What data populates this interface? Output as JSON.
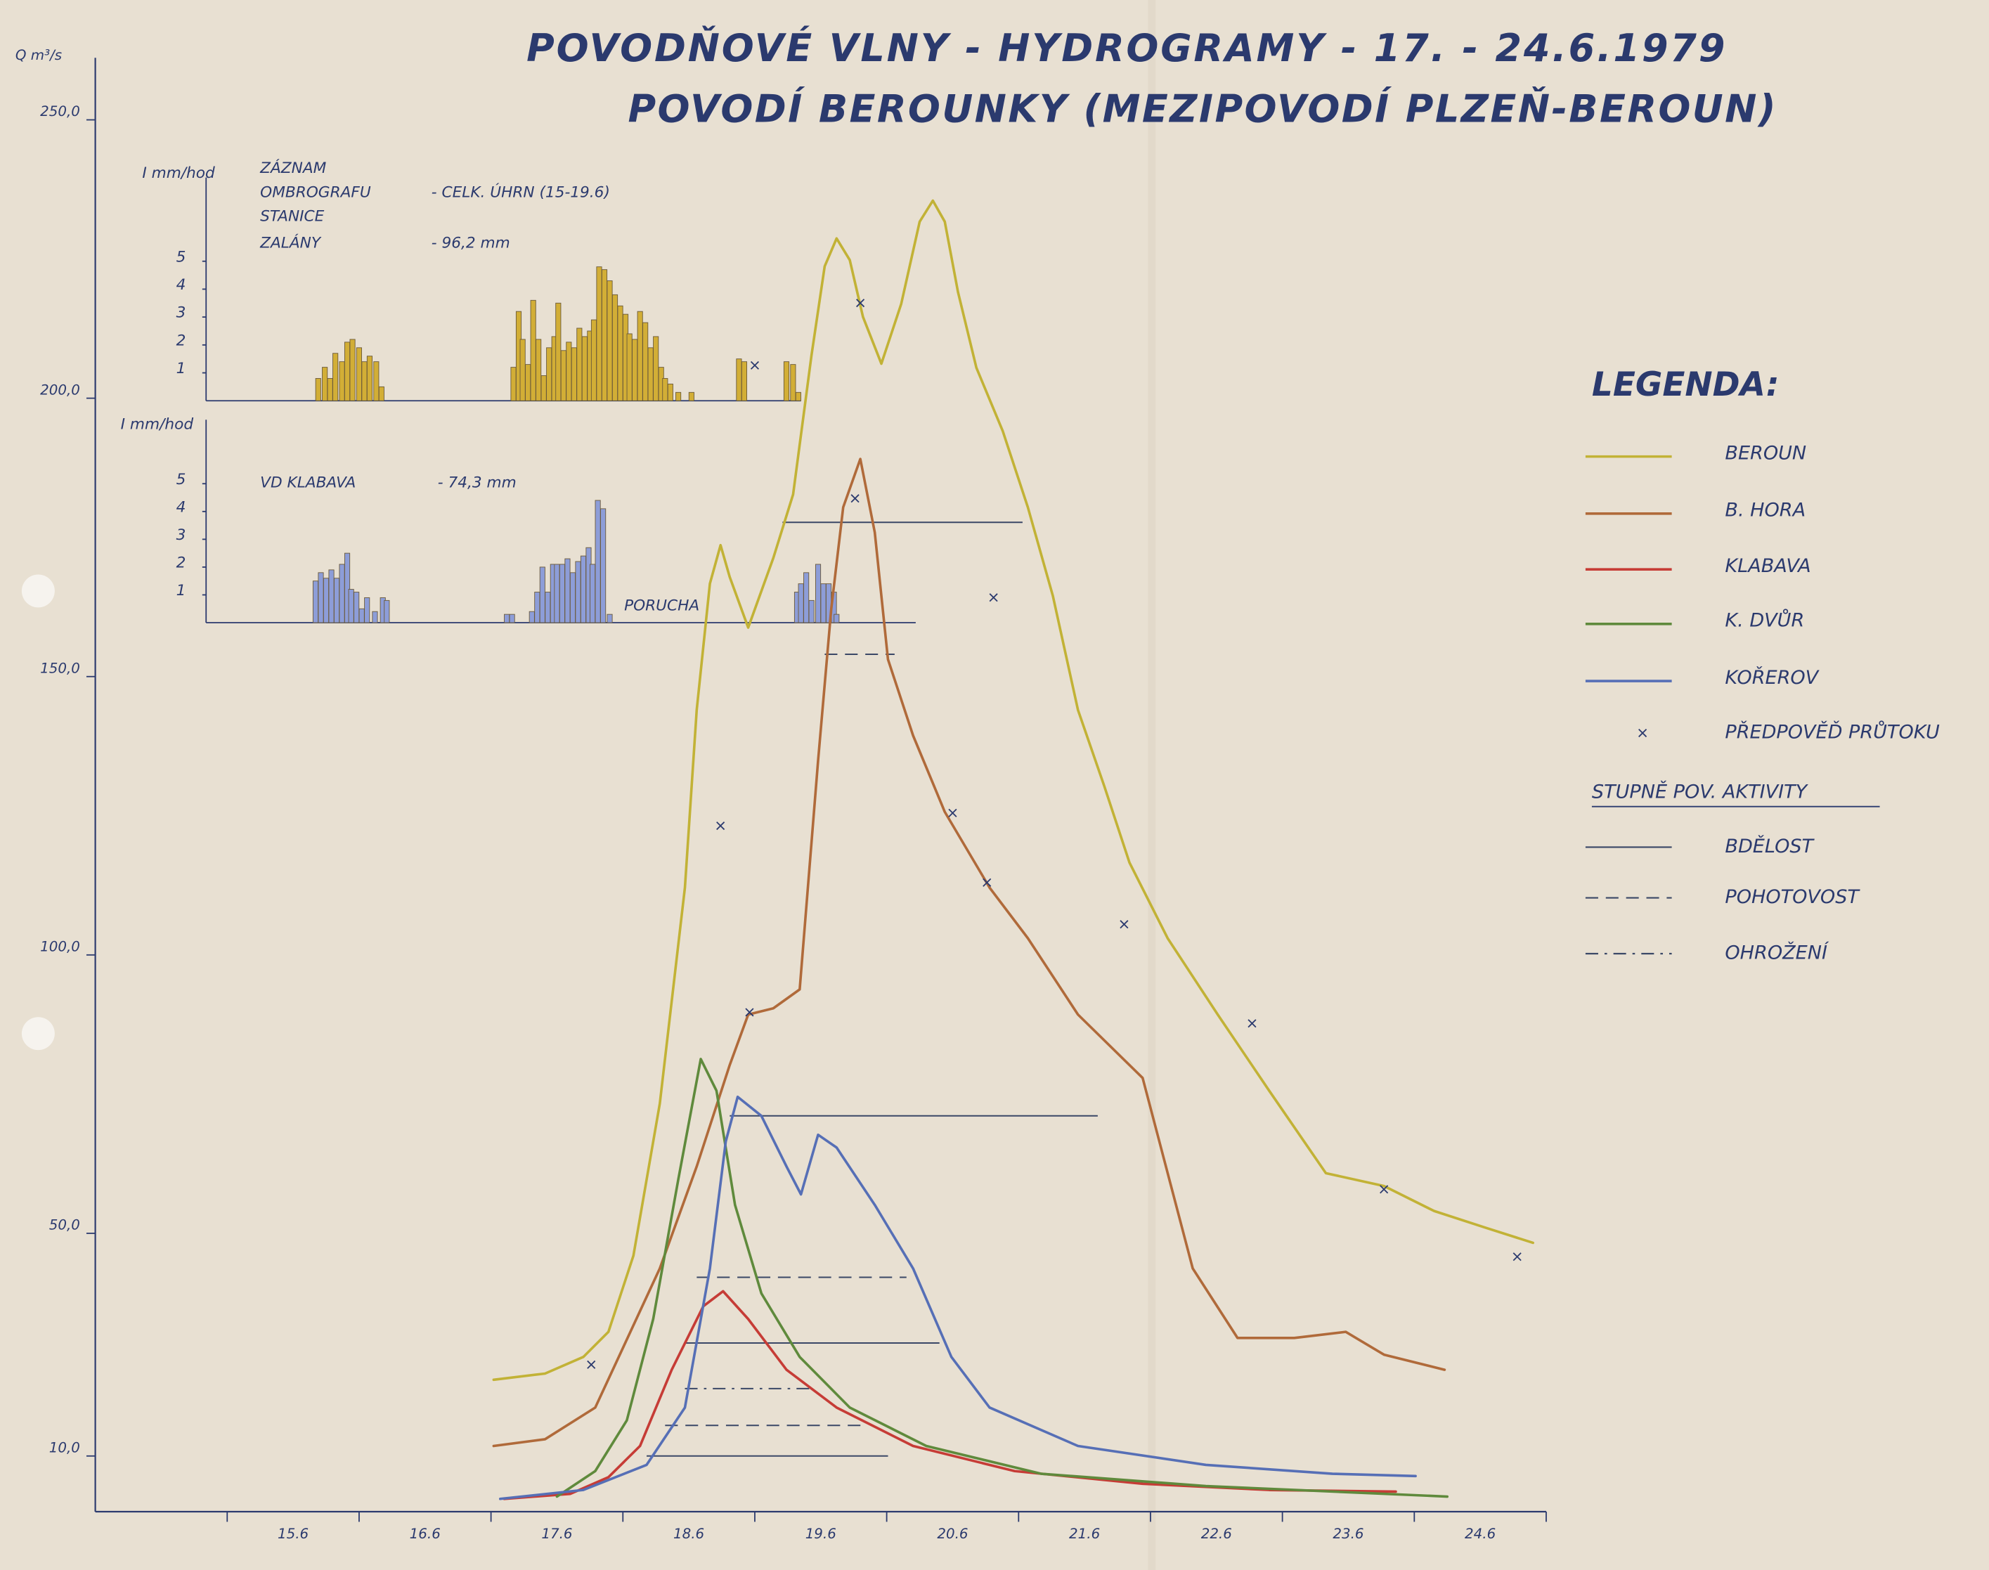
{
  "chart_data": {
    "type": "line",
    "title": "POVODŇOVÉ VLNY - HYDROGRAMY - 17. - 24.6.1979",
    "subtitle": "POVODÍ BEROUNKY (MEZIPOVODÍ PLZEŇ-BEROUN)",
    "y_label": "Q m³/s",
    "xlim": [
      14,
      25
    ],
    "ylim": [
      0,
      260
    ],
    "xticks": [
      {
        "value": 15.5,
        "label": "15.6"
      },
      {
        "value": 16.5,
        "label": "16.6"
      },
      {
        "value": 17.5,
        "label": "17.6"
      },
      {
        "value": 18.5,
        "label": "18.6"
      },
      {
        "value": 19.5,
        "label": "19.6"
      },
      {
        "value": 20.5,
        "label": "20.6"
      },
      {
        "value": 21.5,
        "label": "21.6"
      },
      {
        "value": 22.5,
        "label": "22.6"
      },
      {
        "value": 23.5,
        "label": "23.6"
      },
      {
        "value": 24.5,
        "label": "24.6"
      }
    ],
    "yticks": [
      {
        "value": 10,
        "label": "10,0"
      },
      {
        "value": 50,
        "label": "50,0"
      },
      {
        "value": 100,
        "label": "100,0"
      },
      {
        "value": 150,
        "label": "150,0"
      },
      {
        "value": 200,
        "label": "200,0"
      },
      {
        "value": 250,
        "label": "250,0"
      }
    ],
    "legend": {
      "title": "LEGENDA:"
    },
    "series": [
      {
        "name": "BEROUN",
        "color": "#c2b236",
        "x": [
          17.02,
          17.41,
          17.7,
          17.89,
          18.08,
          18.28,
          18.47,
          18.56,
          18.66,
          18.74,
          18.81,
          18.95,
          19.14,
          19.29,
          19.43,
          19.53,
          19.62,
          19.72,
          19.82,
          19.96,
          20.11,
          20.25,
          20.35,
          20.44,
          20.54,
          20.68,
          20.88,
          21.07,
          21.26,
          21.45,
          21.65,
          21.84,
          22.13,
          22.51,
          22.9,
          23.33,
          23.77,
          24.15,
          24.54,
          24.9
        ],
        "values": [
          23.7,
          24.8,
          27.8,
          32.3,
          46.0,
          73.3,
          112.1,
          144.0,
          166.7,
          173.6,
          167.9,
          158.8,
          171.3,
          182.7,
          207.7,
          223.7,
          228.7,
          224.8,
          214.6,
          206.2,
          216.9,
          231.7,
          235.5,
          231.7,
          219.1,
          205.5,
          194.1,
          180.4,
          164.5,
          144.0,
          130.3,
          116.6,
          103.0,
          89.3,
          75.6,
          60.8,
          58.5,
          54.0,
          51.0,
          48.3
        ]
      },
      {
        "name": "B. HORA",
        "color": "#b06a3a",
        "x": [
          17.02,
          17.41,
          17.79,
          17.99,
          18.28,
          18.56,
          18.81,
          18.95,
          19.14,
          19.34,
          19.48,
          19.58,
          19.67,
          19.8,
          19.91,
          20.01,
          20.2,
          20.44,
          20.78,
          21.07,
          21.45,
          21.94,
          22.32,
          22.66,
          23.09,
          23.48,
          23.77,
          24.23
        ],
        "values": [
          11.8,
          13.0,
          18.7,
          28.9,
          43.7,
          62.0,
          80.2,
          89.3,
          90.4,
          93.8,
          134.9,
          162.2,
          180.4,
          189.1,
          175.9,
          153.1,
          139.4,
          125.7,
          112.1,
          103.0,
          89.3,
          77.9,
          43.7,
          31.2,
          31.2,
          32.3,
          28.2,
          25.5
        ]
      },
      {
        "name": "KLABAVA",
        "color": "#c63c36",
        "x": [
          17.1,
          17.6,
          17.89,
          18.13,
          18.37,
          18.61,
          18.76,
          18.95,
          19.24,
          19.62,
          20.2,
          20.97,
          21.94,
          22.9,
          23.86
        ],
        "values": [
          2.3,
          3.2,
          6.2,
          11.8,
          25.5,
          36.9,
          39.6,
          34.6,
          25.5,
          18.7,
          11.8,
          7.3,
          5.0,
          3.9,
          3.6
        ]
      },
      {
        "name": "K. DVŮR",
        "color": "#5f8a3c",
        "x": [
          17.5,
          17.79,
          18.03,
          18.23,
          18.42,
          18.59,
          18.71,
          18.85,
          19.05,
          19.34,
          19.72,
          20.3,
          21.17,
          22.42,
          24.25
        ],
        "values": [
          2.7,
          7.3,
          16.4,
          34.6,
          59.7,
          81.3,
          75.6,
          55.1,
          39.2,
          27.8,
          18.7,
          11.8,
          6.8,
          4.6,
          2.7
        ]
      },
      {
        "name": "KOŘEROV",
        "color": "#566fb6",
        "x": [
          17.07,
          17.7,
          18.18,
          18.47,
          18.66,
          18.78,
          18.87,
          19.05,
          19.24,
          19.35,
          19.48,
          19.62,
          19.91,
          20.2,
          20.49,
          20.78,
          21.45,
          22.42,
          23.38,
          24.01
        ],
        "values": [
          2.3,
          3.9,
          8.4,
          18.7,
          43.7,
          66.5,
          74.5,
          71.1,
          62.0,
          57.0,
          67.7,
          65.4,
          55.1,
          43.7,
          27.8,
          18.7,
          11.8,
          8.4,
          6.8,
          6.4
        ]
      }
    ],
    "forecast": {
      "name": "PŘEDPOVĚĎ PRŮTOKU",
      "marker": "x",
      "x": [
        17.76,
        18.74,
        18.96,
        19.0,
        19.76,
        19.8,
        20.81,
        20.5,
        20.76,
        21.8,
        22.77,
        23.77,
        24.78
      ],
      "values": [
        26.4,
        123.2,
        89.7,
        205.9,
        182.0,
        217.1,
        164.2,
        125.5,
        113.0,
        105.5,
        87.7,
        57.9,
        45.8
      ]
    },
    "activity_levels": {
      "title": "STUPNĚ POV. AKTIVITY",
      "levels": [
        {
          "name": "BDĚLOST",
          "style": "solid"
        },
        {
          "name": "POHOTOVOST",
          "style": "dashed"
        },
        {
          "name": "OHROŽENÍ",
          "style": "dashdot"
        }
      ]
    },
    "thresholds": [
      {
        "level": 0,
        "value": 177.7,
        "x": [
          19.21,
          21.03
        ]
      },
      {
        "level": 0,
        "value": 71.1,
        "x": [
          18.81,
          21.6
        ]
      },
      {
        "level": 0,
        "value": 30.3,
        "x": [
          18.47,
          20.4
        ]
      },
      {
        "level": 0,
        "value": 10.0,
        "x": [
          18.18,
          20.01
        ]
      },
      {
        "level": 1,
        "value": 154.0,
        "x": [
          19.53,
          20.06
        ]
      },
      {
        "level": 1,
        "value": 42.1,
        "x": [
          18.56,
          20.15
        ]
      },
      {
        "level": 1,
        "value": 15.5,
        "x": [
          18.32,
          19.82
        ]
      },
      {
        "level": 2,
        "value": 22.1,
        "x": [
          18.47,
          19.43
        ]
      }
    ],
    "rain_charts": [
      {
        "type": "bar",
        "y_label": "I mm/hod",
        "color": "#d2ae36",
        "notes": [
          "ZÁZNAM",
          "OMBROGRAFU",
          "STANICE",
          "ZALÁNY",
          "- CELK. ÚHRN (15-19.6)",
          "- 96,2 mm"
        ],
        "xlim": [
          14.84,
          19.35
        ],
        "ylim": [
          0,
          8
        ],
        "yticks": [
          1,
          2,
          3,
          4,
          5
        ],
        "x": [
          15.69,
          15.74,
          15.78,
          15.82,
          15.87,
          15.91,
          15.95,
          16.0,
          16.04,
          16.08,
          16.13,
          16.17,
          17.17,
          17.21,
          17.24,
          17.28,
          17.32,
          17.36,
          17.4,
          17.44,
          17.48,
          17.51,
          17.55,
          17.59,
          17.63,
          17.67,
          17.71,
          17.75,
          17.78,
          17.82,
          17.86,
          17.9,
          17.94,
          17.98,
          18.02,
          18.05,
          18.09,
          18.13,
          18.17,
          18.21,
          18.25,
          18.29,
          18.32,
          18.36,
          18.42,
          18.52,
          18.88,
          18.92,
          19.24,
          19.29,
          19.33
        ],
        "values": [
          0.8,
          1.2,
          0.8,
          1.7,
          1.4,
          2.1,
          2.2,
          1.9,
          1.4,
          1.6,
          1.4,
          0.5,
          1.2,
          3.2,
          2.2,
          1.3,
          3.6,
          2.2,
          0.9,
          1.9,
          2.3,
          3.5,
          1.8,
          2.1,
          1.9,
          2.6,
          2.3,
          2.5,
          2.9,
          4.8,
          4.7,
          4.3,
          3.8,
          3.4,
          3.1,
          2.4,
          2.2,
          3.2,
          2.8,
          1.9,
          2.3,
          1.2,
          0.8,
          0.6,
          0.3,
          0.3,
          1.5,
          1.4,
          1.4,
          1.3,
          0.3
        ]
      },
      {
        "type": "bar",
        "y_label": "I mm/hod",
        "color": "#8d9dd8",
        "notes": [
          "VD KLABAVA",
          "- 74,3 mm",
          "PORUCHA"
        ],
        "xlim": [
          14.84,
          20.22
        ],
        "ylim": [
          0,
          7.3
        ],
        "yticks": [
          1,
          2,
          3,
          4,
          5
        ],
        "x": [
          15.67,
          15.71,
          15.75,
          15.79,
          15.83,
          15.87,
          15.91,
          15.94,
          15.98,
          16.02,
          16.06,
          16.12,
          16.18,
          16.21,
          17.12,
          17.16,
          17.31,
          17.35,
          17.39,
          17.43,
          17.47,
          17.5,
          17.54,
          17.58,
          17.62,
          17.66,
          17.7,
          17.74,
          17.77,
          17.81,
          17.85,
          17.9,
          19.32,
          19.35,
          19.39,
          19.43,
          19.48,
          19.52,
          19.56,
          19.6,
          19.62
        ],
        "values": [
          1.5,
          1.8,
          1.6,
          1.9,
          1.6,
          2.1,
          2.5,
          1.2,
          1.1,
          0.5,
          0.9,
          0.4,
          0.9,
          0.8,
          0.3,
          0.3,
          0.4,
          1.1,
          2.0,
          1.1,
          2.1,
          2.1,
          2.1,
          2.3,
          1.8,
          2.2,
          2.4,
          2.7,
          2.1,
          4.4,
          4.1,
          0.3,
          1.1,
          1.4,
          1.8,
          0.8,
          2.1,
          1.4,
          1.4,
          1.1,
          0.3
        ]
      }
    ]
  }
}
